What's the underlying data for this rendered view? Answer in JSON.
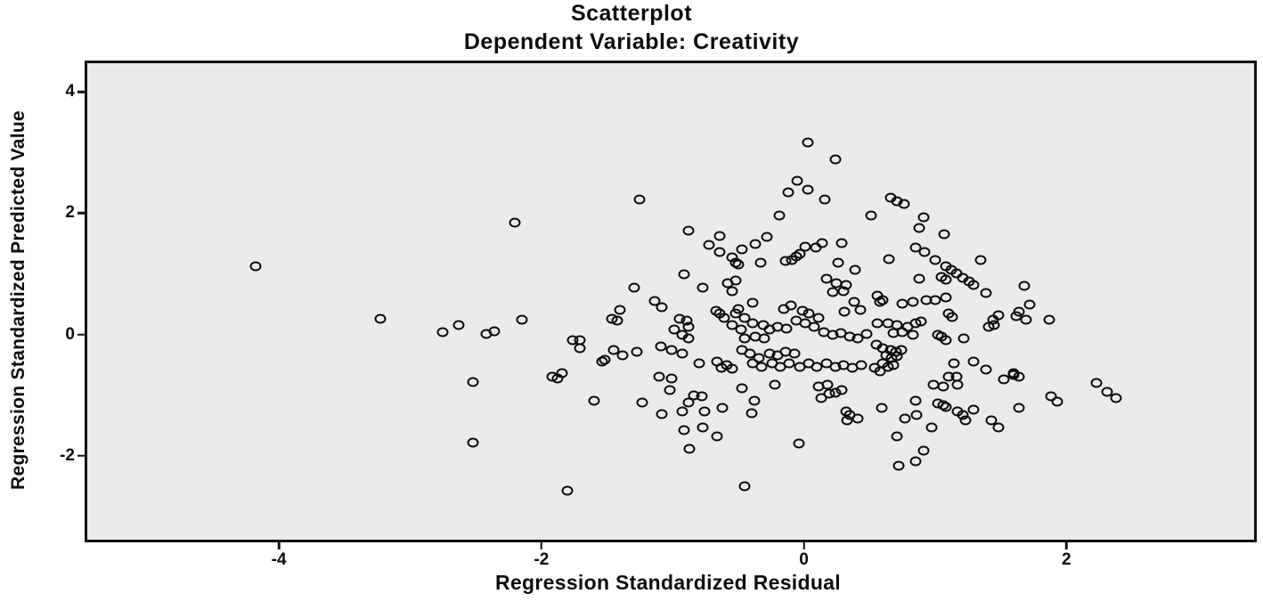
{
  "chart_data": {
    "type": "scatter",
    "title": "Scatterplot",
    "subtitle": "Dependent Variable: Creativity",
    "xlabel": "Regression Standardized Residual",
    "ylabel": "Regression Standardized Predicted Value",
    "xlim": [
      -5.46,
      3.43
    ],
    "ylim": [
      -3.38,
      4.47
    ],
    "x_ticks": [
      -4,
      -2,
      0,
      2
    ],
    "y_ticks": [
      4,
      2,
      0,
      -2
    ],
    "grid": false,
    "legend": "none",
    "marker": "open-circle",
    "colors": {
      "page_background": "#ffffff",
      "plot_background": "#ebebeb",
      "border": "#111111",
      "marker_stroke": "#0d0d0d",
      "text": "#0d0d0d"
    },
    "points": [
      [
        -4.18,
        1.12
      ],
      [
        -3.23,
        0.26
      ],
      [
        -2.75,
        0.04
      ],
      [
        -2.63,
        0.16
      ],
      [
        -2.52,
        -0.79
      ],
      [
        -2.52,
        -1.78
      ],
      [
        -2.42,
        0.01
      ],
      [
        -2.36,
        0.06
      ],
      [
        -2.2,
        1.85
      ],
      [
        -2.15,
        0.25
      ],
      [
        -1.8,
        -2.58
      ],
      [
        0.03,
        3.17
      ],
      [
        0.24,
        2.89
      ],
      [
        -0.05,
        2.53
      ],
      [
        -0.12,
        2.34
      ],
      [
        0.03,
        2.39
      ],
      [
        0.16,
        2.22
      ],
      [
        -0.19,
        1.96
      ],
      [
        -1.25,
        2.23
      ],
      [
        0.66,
        2.25
      ],
      [
        0.71,
        2.19
      ],
      [
        0.76,
        2.15
      ],
      [
        0.51,
        1.96
      ],
      [
        0.91,
        1.93
      ],
      [
        -0.88,
        1.71
      ],
      [
        -0.64,
        1.62
      ],
      [
        -0.72,
        1.47
      ],
      [
        -0.37,
        1.49
      ],
      [
        -0.28,
        1.61
      ],
      [
        -0.64,
        1.36
      ],
      [
        -0.55,
        1.27
      ],
      [
        -0.52,
        1.18
      ],
      [
        -0.5,
        1.15
      ],
      [
        -0.47,
        1.4
      ],
      [
        -0.33,
        1.18
      ],
      [
        -0.03,
        1.33
      ],
      [
        0.01,
        1.45
      ],
      [
        0.09,
        1.43
      ],
      [
        0.14,
        1.5
      ],
      [
        0.29,
        1.5
      ],
      [
        -0.09,
        1.23
      ],
      [
        -0.14,
        1.21
      ],
      [
        -0.06,
        1.28
      ],
      [
        0.26,
        1.18
      ],
      [
        0.39,
        1.07
      ],
      [
        -0.91,
        0.99
      ],
      [
        -0.77,
        0.77
      ],
      [
        -0.58,
        0.85
      ],
      [
        -0.52,
        0.89
      ],
      [
        -0.55,
        0.72
      ],
      [
        -1.29,
        0.77
      ],
      [
        -1.14,
        0.55
      ],
      [
        -1.08,
        0.45
      ],
      [
        -1.4,
        0.41
      ],
      [
        -1.46,
        0.26
      ],
      [
        -1.42,
        0.23
      ],
      [
        0.88,
        1.76
      ],
      [
        1.07,
        1.66
      ],
      [
        0.85,
        1.43
      ],
      [
        0.92,
        1.36
      ],
      [
        1.0,
        1.23
      ],
      [
        0.65,
        1.24
      ],
      [
        1.08,
        1.12
      ],
      [
        1.12,
        1.07
      ],
      [
        1.16,
        1.01
      ],
      [
        1.21,
        0.93
      ],
      [
        1.26,
        0.88
      ],
      [
        1.29,
        0.82
      ],
      [
        1.35,
        1.23
      ],
      [
        0.88,
        0.92
      ],
      [
        1.05,
        0.95
      ],
      [
        1.08,
        0.91
      ],
      [
        1.39,
        0.69
      ],
      [
        1.68,
        0.8
      ],
      [
        1.72,
        0.5
      ],
      [
        0.17,
        0.92
      ],
      [
        0.25,
        0.85
      ],
      [
        0.32,
        0.82
      ],
      [
        0.3,
        0.72
      ],
      [
        0.22,
        0.7
      ],
      [
        0.38,
        0.54
      ],
      [
        0.43,
        0.41
      ],
      [
        0.31,
        0.38
      ],
      [
        -0.39,
        0.53
      ],
      [
        -0.5,
        0.42
      ],
      [
        -0.67,
        0.39
      ],
      [
        -0.64,
        0.34
      ],
      [
        -0.61,
        0.28
      ],
      [
        -0.52,
        0.34
      ],
      [
        -0.45,
        0.28
      ],
      [
        -0.55,
        0.16
      ],
      [
        -0.48,
        0.09
      ],
      [
        -0.39,
        0.19
      ],
      [
        -0.31,
        0.16
      ],
      [
        -0.26,
        0.09
      ],
      [
        -0.2,
        0.12
      ],
      [
        -0.37,
        -0.03
      ],
      [
        -0.45,
        -0.07
      ],
      [
        -0.3,
        -0.06
      ],
      [
        -0.15,
        0.42
      ],
      [
        -0.1,
        0.48
      ],
      [
        -0.01,
        0.39
      ],
      [
        0.04,
        0.34
      ],
      [
        0.11,
        0.28
      ],
      [
        -0.06,
        0.23
      ],
      [
        0.01,
        0.18
      ],
      [
        -0.13,
        0.1
      ],
      [
        0.08,
        0.12
      ],
      [
        0.15,
        0.04
      ],
      [
        0.22,
        -0.01
      ],
      [
        0.28,
        0.03
      ],
      [
        0.35,
        -0.03
      ],
      [
        0.41,
        -0.07
      ],
      [
        0.48,
        0.01
      ],
      [
        -0.89,
        0.23
      ],
      [
        -0.88,
        0.13
      ],
      [
        -0.95,
        0.26
      ],
      [
        -0.99,
        0.09
      ],
      [
        -0.93,
        0.0
      ],
      [
        -0.88,
        -0.07
      ],
      [
        0.56,
        0.64
      ],
      [
        0.6,
        0.57
      ],
      [
        0.58,
        0.54
      ],
      [
        0.75,
        0.51
      ],
      [
        0.83,
        0.54
      ],
      [
        0.93,
        0.57
      ],
      [
        1.0,
        0.57
      ],
      [
        1.08,
        0.61
      ],
      [
        1.1,
        0.34
      ],
      [
        1.13,
        0.29
      ],
      [
        1.48,
        0.32
      ],
      [
        1.44,
        0.25
      ],
      [
        1.41,
        0.13
      ],
      [
        1.45,
        0.16
      ],
      [
        1.64,
        0.38
      ],
      [
        1.62,
        0.31
      ],
      [
        1.69,
        0.25
      ],
      [
        1.87,
        0.25
      ],
      [
        0.56,
        0.19
      ],
      [
        0.64,
        0.18
      ],
      [
        0.71,
        0.16
      ],
      [
        0.79,
        0.13
      ],
      [
        0.85,
        0.19
      ],
      [
        0.89,
        0.22
      ],
      [
        0.75,
        0.04
      ],
      [
        0.68,
        0.03
      ],
      [
        0.83,
        -0.01
      ],
      [
        1.02,
        0.0
      ],
      [
        1.05,
        -0.04
      ],
      [
        1.08,
        -0.1
      ],
      [
        1.22,
        -0.07
      ],
      [
        -1.09,
        -0.2
      ],
      [
        -1.01,
        -0.25
      ],
      [
        -0.93,
        -0.31
      ],
      [
        -1.71,
        -0.1
      ],
      [
        -1.76,
        -0.09
      ],
      [
        -1.71,
        -0.22
      ],
      [
        -1.52,
        -0.41
      ],
      [
        -1.45,
        -0.25
      ],
      [
        -1.38,
        -0.34
      ],
      [
        -1.27,
        -0.28
      ],
      [
        -1.54,
        -0.44
      ],
      [
        -1.92,
        -0.69
      ],
      [
        -1.84,
        -0.64
      ],
      [
        -1.88,
        -0.72
      ],
      [
        -1.1,
        -0.69
      ],
      [
        -1.01,
        -0.73
      ],
      [
        -0.8,
        -0.47
      ],
      [
        -0.66,
        -0.45
      ],
      [
        -0.59,
        -0.51
      ],
      [
        -0.63,
        -0.55
      ],
      [
        -0.55,
        -0.57
      ],
      [
        -0.47,
        -0.25
      ],
      [
        -0.41,
        -0.31
      ],
      [
        -0.34,
        -0.38
      ],
      [
        -0.26,
        -0.31
      ],
      [
        -0.2,
        -0.34
      ],
      [
        -0.14,
        -0.28
      ],
      [
        -0.07,
        -0.31
      ],
      [
        -0.39,
        -0.48
      ],
      [
        -0.32,
        -0.54
      ],
      [
        -0.24,
        -0.48
      ],
      [
        -0.18,
        -0.54
      ],
      [
        -0.11,
        -0.48
      ],
      [
        -0.03,
        -0.54
      ],
      [
        0.04,
        -0.48
      ],
      [
        0.1,
        -0.54
      ],
      [
        0.17,
        -0.48
      ],
      [
        0.24,
        -0.54
      ],
      [
        0.3,
        -0.5
      ],
      [
        0.37,
        -0.55
      ],
      [
        0.44,
        -0.5
      ],
      [
        0.55,
        -0.16
      ],
      [
        0.6,
        -0.22
      ],
      [
        0.66,
        -0.25
      ],
      [
        0.7,
        -0.29
      ],
      [
        0.74,
        -0.26
      ],
      [
        0.63,
        -0.34
      ],
      [
        0.67,
        -0.39
      ],
      [
        0.71,
        -0.36
      ],
      [
        0.6,
        -0.48
      ],
      [
        0.64,
        -0.54
      ],
      [
        0.68,
        -0.51
      ],
      [
        0.54,
        -0.55
      ],
      [
        0.58,
        -0.6
      ],
      [
        1.14,
        -0.48
      ],
      [
        1.29,
        -0.45
      ],
      [
        1.16,
        -0.69
      ],
      [
        1.1,
        -0.7
      ],
      [
        1.39,
        -0.58
      ],
      [
        1.52,
        -0.74
      ],
      [
        1.6,
        -0.67
      ],
      [
        1.6,
        -0.63
      ],
      [
        1.64,
        -0.69
      ],
      [
        0.99,
        -0.82
      ],
      [
        1.06,
        -0.86
      ],
      [
        1.17,
        -0.83
      ],
      [
        2.23,
        -0.8
      ],
      [
        2.31,
        -0.95
      ],
      [
        2.38,
        -1.04
      ],
      [
        1.88,
        -1.02
      ],
      [
        1.93,
        -1.1
      ],
      [
        -1.6,
        -1.09
      ],
      [
        -1.23,
        -1.12
      ],
      [
        -1.08,
        -1.31
      ],
      [
        -1.02,
        -0.92
      ],
      [
        -0.93,
        -1.27
      ],
      [
        -0.88,
        -1.12
      ],
      [
        -0.84,
        -1.01
      ],
      [
        -0.78,
        -1.02
      ],
      [
        -0.76,
        -1.27
      ],
      [
        -0.62,
        -1.21
      ],
      [
        -0.91,
        -1.58
      ],
      [
        -0.77,
        -1.53
      ],
      [
        -0.66,
        -1.68
      ],
      [
        -0.87,
        -1.88
      ],
      [
        -0.47,
        -0.89
      ],
      [
        -0.38,
        -1.09
      ],
      [
        -0.4,
        -1.3
      ],
      [
        -0.04,
        -1.8
      ],
      [
        -0.45,
        -2.5
      ],
      [
        0.13,
        -1.05
      ],
      [
        0.19,
        -0.98
      ],
      [
        0.32,
        -1.26
      ],
      [
        0.35,
        -1.33
      ],
      [
        0.41,
        -1.39
      ],
      [
        0.33,
        -1.42
      ],
      [
        0.11,
        -0.86
      ],
      [
        0.18,
        -0.83
      ],
      [
        0.24,
        -0.96
      ],
      [
        0.29,
        -0.92
      ],
      [
        -0.22,
        -0.83
      ],
      [
        0.59,
        -1.21
      ],
      [
        0.77,
        -1.39
      ],
      [
        0.86,
        -1.33
      ],
      [
        0.85,
        -1.09
      ],
      [
        1.02,
        -1.14
      ],
      [
        1.06,
        -1.17
      ],
      [
        1.08,
        -1.2
      ],
      [
        1.17,
        -1.27
      ],
      [
        1.21,
        -1.33
      ],
      [
        1.23,
        -1.41
      ],
      [
        1.29,
        -1.24
      ],
      [
        0.71,
        -1.68
      ],
      [
        0.97,
        -1.53
      ],
      [
        1.43,
        -1.42
      ],
      [
        1.48,
        -1.53
      ],
      [
        1.64,
        -1.21
      ],
      [
        0.91,
        -1.91
      ],
      [
        0.85,
        -2.09
      ],
      [
        0.72,
        -2.16
      ]
    ]
  }
}
